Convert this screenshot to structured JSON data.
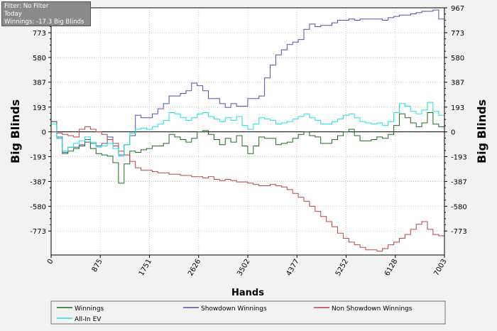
{
  "info_box": {
    "filter": "Filter: No Filter",
    "period": "Today",
    "winnings": "Winnings: -17.3 Big Blinds"
  },
  "chart_data": {
    "type": "line",
    "xlabel": "Hands",
    "ylabel_left": "Big Blinds",
    "ylabel_right": "Big Blinds",
    "xlim": [
      0,
      7003
    ],
    "ylim": [
      -960,
      967
    ],
    "x_ticks": [
      0,
      875,
      1751,
      2626,
      3502,
      4377,
      5252,
      6128,
      7003
    ],
    "y_ticks": [
      967,
      773,
      580,
      387,
      193,
      0,
      -193,
      -387,
      -580,
      -773
    ],
    "grid": true,
    "legend_position": "bottom",
    "colors": {
      "plot_background": "#ffffff",
      "grid": "#c8c8c8",
      "zero_line": "#000000"
    },
    "series": [
      {
        "name": "Winnings",
        "color": "#1e6b1e",
        "points": [
          [
            0,
            80
          ],
          [
            100,
            -50
          ],
          [
            200,
            -170
          ],
          [
            300,
            -150
          ],
          [
            400,
            -130
          ],
          [
            500,
            -110
          ],
          [
            600,
            -80
          ],
          [
            700,
            -130
          ],
          [
            800,
            -170
          ],
          [
            900,
            -180
          ],
          [
            1000,
            -190
          ],
          [
            1100,
            -240
          ],
          [
            1200,
            -400
          ],
          [
            1300,
            -250
          ],
          [
            1400,
            -150
          ],
          [
            1500,
            -160
          ],
          [
            1600,
            -140
          ],
          [
            1700,
            -130
          ],
          [
            1800,
            -110
          ],
          [
            1900,
            -110
          ],
          [
            2000,
            -90
          ],
          [
            2100,
            -20
          ],
          [
            2200,
            -40
          ],
          [
            2300,
            -60
          ],
          [
            2400,
            -80
          ],
          [
            2500,
            -50
          ],
          [
            2600,
            0
          ],
          [
            2700,
            10
          ],
          [
            2800,
            -20
          ],
          [
            2900,
            -60
          ],
          [
            3000,
            -100
          ],
          [
            3100,
            -50
          ],
          [
            3200,
            -80
          ],
          [
            3300,
            -30
          ],
          [
            3400,
            -110
          ],
          [
            3500,
            -170
          ],
          [
            3600,
            -110
          ],
          [
            3700,
            -40
          ],
          [
            3800,
            -50
          ],
          [
            3900,
            -50
          ],
          [
            4000,
            -100
          ],
          [
            4100,
            -90
          ],
          [
            4200,
            -80
          ],
          [
            4300,
            -50
          ],
          [
            4400,
            -20
          ],
          [
            4500,
            0
          ],
          [
            4600,
            -30
          ],
          [
            4700,
            -40
          ],
          [
            4800,
            -90
          ],
          [
            4900,
            -90
          ],
          [
            5000,
            -60
          ],
          [
            5100,
            -30
          ],
          [
            5200,
            0
          ],
          [
            5300,
            20
          ],
          [
            5400,
            -30
          ],
          [
            5500,
            -70
          ],
          [
            5600,
            -70
          ],
          [
            5700,
            -60
          ],
          [
            5800,
            -40
          ],
          [
            5900,
            -50
          ],
          [
            6000,
            -20
          ],
          [
            6100,
            50
          ],
          [
            6200,
            140
          ],
          [
            6300,
            110
          ],
          [
            6400,
            70
          ],
          [
            6500,
            40
          ],
          [
            6600,
            70
          ],
          [
            6700,
            150
          ],
          [
            6800,
            60
          ],
          [
            6900,
            40
          ],
          [
            7003,
            -20
          ]
        ]
      },
      {
        "name": "Showdown Winnings",
        "color": "#5050a8",
        "points": [
          [
            0,
            80
          ],
          [
            100,
            -40
          ],
          [
            200,
            -160
          ],
          [
            300,
            -120
          ],
          [
            400,
            -120
          ],
          [
            500,
            -100
          ],
          [
            600,
            -60
          ],
          [
            700,
            -90
          ],
          [
            800,
            -110
          ],
          [
            900,
            -90
          ],
          [
            1000,
            -40
          ],
          [
            1100,
            -110
          ],
          [
            1200,
            -180
          ],
          [
            1300,
            -100
          ],
          [
            1400,
            -30
          ],
          [
            1500,
            130
          ],
          [
            1600,
            110
          ],
          [
            1700,
            110
          ],
          [
            1800,
            140
          ],
          [
            1900,
            180
          ],
          [
            2000,
            220
          ],
          [
            2100,
            280
          ],
          [
            2200,
            280
          ],
          [
            2300,
            300
          ],
          [
            2400,
            320
          ],
          [
            2500,
            380
          ],
          [
            2600,
            360
          ],
          [
            2700,
            320
          ],
          [
            2800,
            260
          ],
          [
            2900,
            260
          ],
          [
            3000,
            220
          ],
          [
            3100,
            190
          ],
          [
            3200,
            220
          ],
          [
            3300,
            200
          ],
          [
            3400,
            200
          ],
          [
            3500,
            260
          ],
          [
            3600,
            260
          ],
          [
            3700,
            280
          ],
          [
            3800,
            420
          ],
          [
            3900,
            520
          ],
          [
            4000,
            600
          ],
          [
            4100,
            640
          ],
          [
            4200,
            680
          ],
          [
            4300,
            700
          ],
          [
            4400,
            720
          ],
          [
            4500,
            800
          ],
          [
            4600,
            840
          ],
          [
            4700,
            820
          ],
          [
            4800,
            830
          ],
          [
            4900,
            830
          ],
          [
            5000,
            850
          ],
          [
            5100,
            870
          ],
          [
            5200,
            870
          ],
          [
            5300,
            880
          ],
          [
            5400,
            870
          ],
          [
            5500,
            880
          ],
          [
            5600,
            880
          ],
          [
            5700,
            880
          ],
          [
            5800,
            880
          ],
          [
            5900,
            870
          ],
          [
            6000,
            890
          ],
          [
            6100,
            900
          ],
          [
            6200,
            910
          ],
          [
            6300,
            910
          ],
          [
            6400,
            920
          ],
          [
            6500,
            930
          ],
          [
            6600,
            940
          ],
          [
            6700,
            940
          ],
          [
            6800,
            950
          ],
          [
            6900,
            880
          ],
          [
            7003,
            860
          ]
        ]
      },
      {
        "name": "Non Showdown Winnings",
        "color": "#c04040",
        "points": [
          [
            0,
            0
          ],
          [
            100,
            -10
          ],
          [
            200,
            -20
          ],
          [
            300,
            -30
          ],
          [
            400,
            -40
          ],
          [
            500,
            20
          ],
          [
            600,
            40
          ],
          [
            700,
            20
          ],
          [
            800,
            0
          ],
          [
            900,
            -20
          ],
          [
            1000,
            -60
          ],
          [
            1100,
            -90
          ],
          [
            1200,
            -150
          ],
          [
            1300,
            -180
          ],
          [
            1400,
            -230
          ],
          [
            1500,
            -280
          ],
          [
            1600,
            -300
          ],
          [
            1700,
            -300
          ],
          [
            1800,
            -310
          ],
          [
            1900,
            -320
          ],
          [
            2000,
            -320
          ],
          [
            2100,
            -330
          ],
          [
            2200,
            -330
          ],
          [
            2300,
            -340
          ],
          [
            2400,
            -340
          ],
          [
            2500,
            -350
          ],
          [
            2600,
            -350
          ],
          [
            2700,
            -360
          ],
          [
            2800,
            -350
          ],
          [
            2900,
            -370
          ],
          [
            3000,
            -380
          ],
          [
            3100,
            -370
          ],
          [
            3200,
            -380
          ],
          [
            3300,
            -390
          ],
          [
            3400,
            -390
          ],
          [
            3500,
            -400
          ],
          [
            3600,
            -410
          ],
          [
            3700,
            -420
          ],
          [
            3800,
            -420
          ],
          [
            3900,
            -410
          ],
          [
            4000,
            -420
          ],
          [
            4100,
            -430
          ],
          [
            4200,
            -450
          ],
          [
            4300,
            -480
          ],
          [
            4400,
            -510
          ],
          [
            4500,
            -540
          ],
          [
            4600,
            -580
          ],
          [
            4700,
            -620
          ],
          [
            4800,
            -660
          ],
          [
            4900,
            -700
          ],
          [
            5000,
            -740
          ],
          [
            5100,
            -790
          ],
          [
            5200,
            -830
          ],
          [
            5300,
            -860
          ],
          [
            5400,
            -880
          ],
          [
            5500,
            -900
          ],
          [
            5600,
            -920
          ],
          [
            5700,
            -920
          ],
          [
            5800,
            -930
          ],
          [
            5900,
            -910
          ],
          [
            6000,
            -880
          ],
          [
            6100,
            -860
          ],
          [
            6200,
            -830
          ],
          [
            6300,
            -800
          ],
          [
            6400,
            -760
          ],
          [
            6500,
            -720
          ],
          [
            6600,
            -700
          ],
          [
            6700,
            -760
          ],
          [
            6800,
            -800
          ],
          [
            6900,
            -810
          ],
          [
            7003,
            -840
          ]
        ]
      },
      {
        "name": "All-In EV",
        "color": "#18e2e2",
        "points": [
          [
            0,
            60
          ],
          [
            100,
            -50
          ],
          [
            200,
            -150
          ],
          [
            300,
            -120
          ],
          [
            400,
            -90
          ],
          [
            500,
            -70
          ],
          [
            600,
            -40
          ],
          [
            700,
            -80
          ],
          [
            800,
            -120
          ],
          [
            900,
            -110
          ],
          [
            1000,
            -90
          ],
          [
            1100,
            -130
          ],
          [
            1200,
            -190
          ],
          [
            1300,
            -100
          ],
          [
            1400,
            -10
          ],
          [
            1500,
            20
          ],
          [
            1600,
            30
          ],
          [
            1700,
            20
          ],
          [
            1800,
            40
          ],
          [
            1900,
            60
          ],
          [
            2000,
            90
          ],
          [
            2100,
            150
          ],
          [
            2200,
            140
          ],
          [
            2300,
            110
          ],
          [
            2400,
            90
          ],
          [
            2500,
            110
          ],
          [
            2600,
            140
          ],
          [
            2700,
            150
          ],
          [
            2800,
            120
          ],
          [
            2900,
            100
          ],
          [
            3000,
            80
          ],
          [
            3100,
            110
          ],
          [
            3200,
            90
          ],
          [
            3300,
            120
          ],
          [
            3400,
            50
          ],
          [
            3500,
            20
          ],
          [
            3600,
            60
          ],
          [
            3700,
            110
          ],
          [
            3800,
            100
          ],
          [
            3900,
            90
          ],
          [
            4000,
            60
          ],
          [
            4100,
            70
          ],
          [
            4200,
            80
          ],
          [
            4300,
            100
          ],
          [
            4400,
            120
          ],
          [
            4500,
            140
          ],
          [
            4600,
            110
          ],
          [
            4700,
            90
          ],
          [
            4800,
            60
          ],
          [
            4900,
            60
          ],
          [
            5000,
            80
          ],
          [
            5100,
            100
          ],
          [
            5200,
            130
          ],
          [
            5300,
            140
          ],
          [
            5400,
            110
          ],
          [
            5500,
            80
          ],
          [
            5600,
            70
          ],
          [
            5700,
            60
          ],
          [
            5800,
            70
          ],
          [
            5900,
            50
          ],
          [
            6000,
            80
          ],
          [
            6100,
            150
          ],
          [
            6200,
            220
          ],
          [
            6300,
            200
          ],
          [
            6400,
            160
          ],
          [
            6500,
            140
          ],
          [
            6600,
            170
          ],
          [
            6700,
            230
          ],
          [
            6800,
            160
          ],
          [
            6900,
            130
          ],
          [
            7003,
            80
          ]
        ]
      }
    ]
  }
}
